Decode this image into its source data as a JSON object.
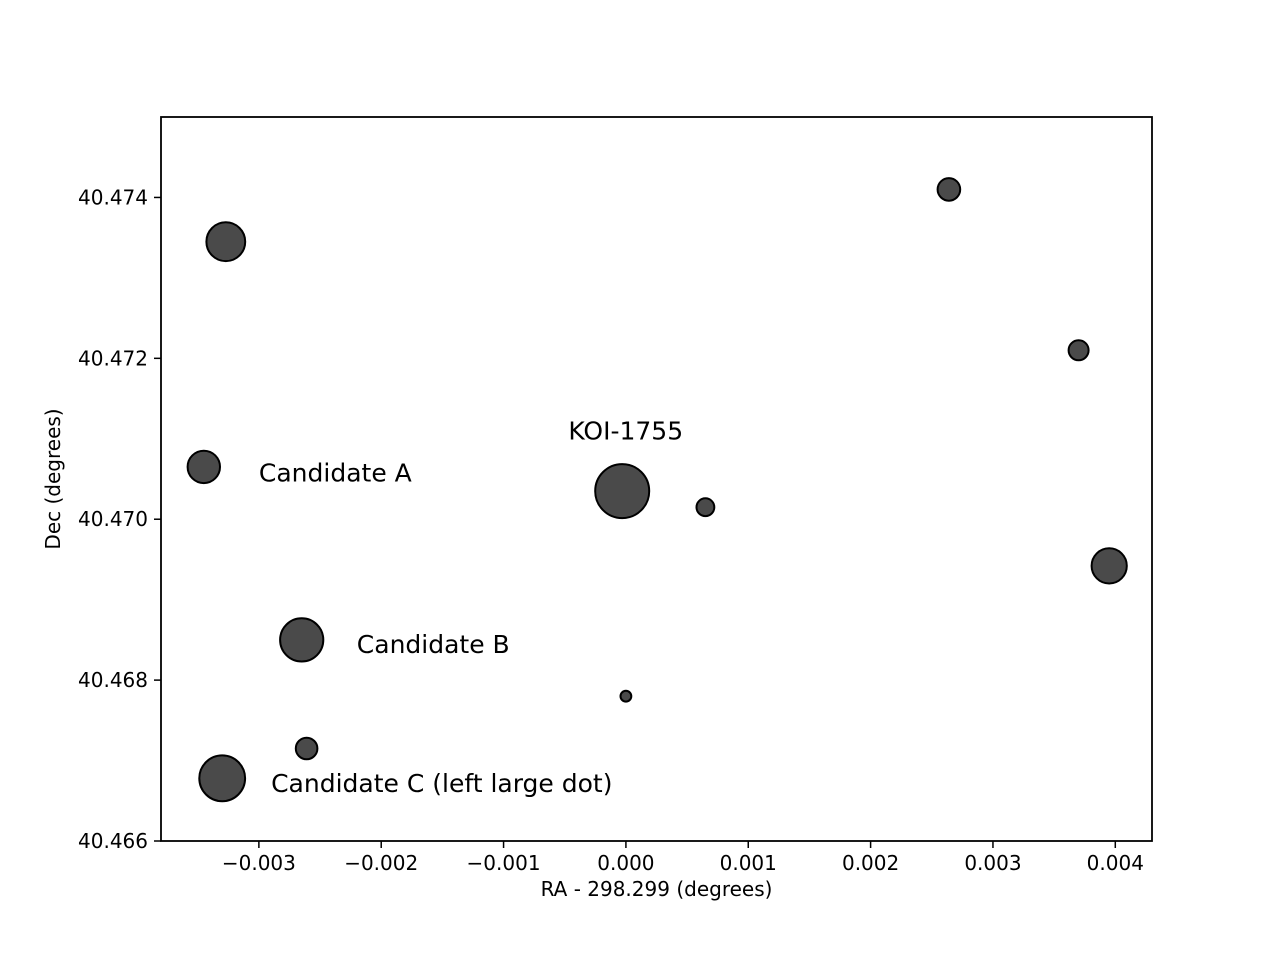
{
  "chart_data": {
    "type": "scatter",
    "title": "",
    "xlabel": "RA - 298.299 (degrees)",
    "ylabel": "Dec (degrees)",
    "xlim": [
      -0.0038,
      0.0043
    ],
    "ylim": [
      40.466,
      40.475
    ],
    "grid": false,
    "legend": "none",
    "marker_color": "#4a4a4a",
    "marker_edge_color": "#000000",
    "x_ticks": [
      {
        "value": -0.003,
        "label": "−0.003"
      },
      {
        "value": -0.002,
        "label": "−0.002"
      },
      {
        "value": -0.001,
        "label": "−0.001"
      },
      {
        "value": 0.0,
        "label": "0.000"
      },
      {
        "value": 0.001,
        "label": "0.001"
      },
      {
        "value": 0.002,
        "label": "0.002"
      },
      {
        "value": 0.003,
        "label": "0.003"
      },
      {
        "value": 0.004,
        "label": "0.004"
      }
    ],
    "y_ticks": [
      {
        "value": 40.466,
        "label": "40.466"
      },
      {
        "value": 40.468,
        "label": "40.468"
      },
      {
        "value": 40.47,
        "label": "40.470"
      },
      {
        "value": 40.472,
        "label": "40.472"
      },
      {
        "value": 40.474,
        "label": "40.474"
      }
    ],
    "points": [
      {
        "x": -3e-05,
        "y": 40.47035,
        "relative_size": 1.0
      },
      {
        "x": -0.00345,
        "y": 40.47065,
        "relative_size": 0.6
      },
      {
        "x": -0.00265,
        "y": 40.4685,
        "relative_size": 0.8
      },
      {
        "x": -0.0033,
        "y": 40.46678,
        "relative_size": 0.85
      },
      {
        "x": -0.00327,
        "y": 40.47345,
        "relative_size": 0.72
      },
      {
        "x": -0.00261,
        "y": 40.46715,
        "relative_size": 0.4
      },
      {
        "x": 0.00065,
        "y": 40.47015,
        "relative_size": 0.33
      },
      {
        "x": 0.0,
        "y": 40.4678,
        "relative_size": 0.2
      },
      {
        "x": 0.00264,
        "y": 40.4741,
        "relative_size": 0.42
      },
      {
        "x": 0.0037,
        "y": 40.4721,
        "relative_size": 0.37
      },
      {
        "x": 0.00395,
        "y": 40.46942,
        "relative_size": 0.65
      }
    ],
    "annotations": [
      {
        "text": "KOI-1755",
        "x": -0.00047,
        "y": 40.4711
      },
      {
        "text": "Candidate A",
        "x": -0.003,
        "y": 40.47058
      },
      {
        "text": "Candidate B",
        "x": -0.0022,
        "y": 40.46845
      },
      {
        "text": "Candidate C (left large dot)",
        "x": -0.0029,
        "y": 40.46672
      }
    ]
  }
}
